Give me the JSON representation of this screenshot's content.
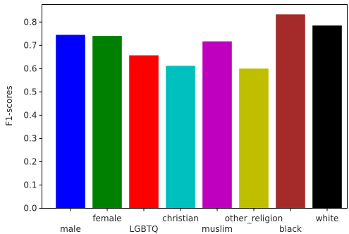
{
  "chart_data": {
    "type": "bar",
    "categories": [
      "male",
      "female",
      "LGBTQ",
      "christian",
      "muslim",
      "other_religion",
      "black",
      "white"
    ],
    "values": [
      0.745,
      0.74,
      0.657,
      0.612,
      0.717,
      0.6,
      0.833,
      0.785
    ],
    "colors": [
      "#0000ff",
      "#008000",
      "#ff0000",
      "#00bfbf",
      "#bf00bf",
      "#bfbf00",
      "#a52a2a",
      "#000000"
    ],
    "title": "",
    "xlabel": "",
    "ylabel": "F1-scores",
    "ylim": [
      0,
      0.875
    ],
    "yticks": [
      0.0,
      0.1,
      0.2,
      0.3,
      0.4,
      0.5,
      0.6,
      0.7,
      0.8
    ],
    "ytick_labels": [
      "0.0",
      "0.1",
      "0.2",
      "0.3",
      "0.4",
      "0.5",
      "0.6",
      "0.7",
      "0.8"
    ],
    "grid": false,
    "legend": "none"
  }
}
